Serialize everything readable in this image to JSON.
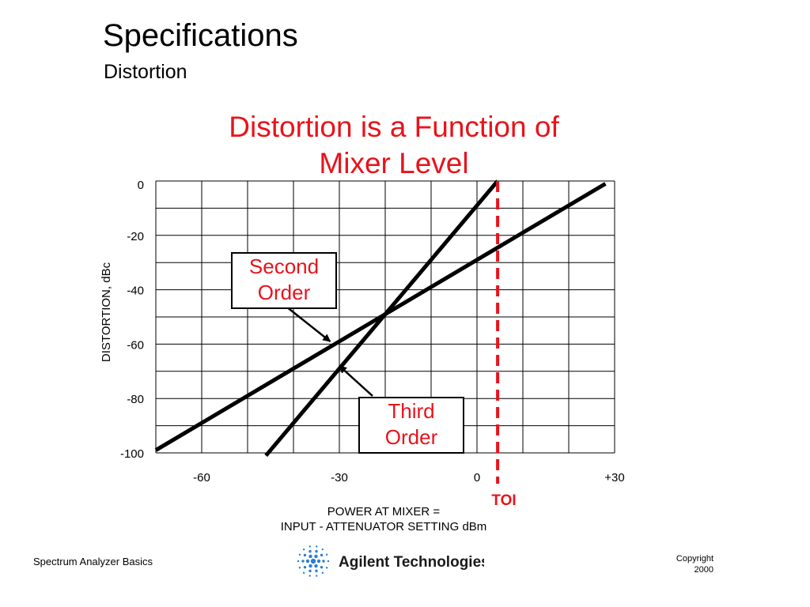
{
  "slide": {
    "title": "Specifications",
    "subtitle": "Distortion"
  },
  "chart_data": {
    "type": "line",
    "title": "Distortion is a Function of Mixer Level",
    "title_lines": [
      "Distortion is a Function of",
      "Mixer Level"
    ],
    "ylabel": "DISTORTION, dBc",
    "xlabel_lines": [
      "POWER AT MIXER =",
      "INPUT - ATTENUATOR SETTING dBm"
    ],
    "xlim": [
      -70,
      30
    ],
    "ylim": [
      -100,
      0
    ],
    "grid": true,
    "x_ticks": [
      {
        "value": -60,
        "label": "-60"
      },
      {
        "value": -30,
        "label": "-30"
      },
      {
        "value": 0,
        "label": "0"
      },
      {
        "value": 30,
        "label": "+30"
      }
    ],
    "y_ticks": [
      {
        "value": 0,
        "label": "0"
      },
      {
        "value": -20,
        "label": "-20"
      },
      {
        "value": -40,
        "label": "-40"
      },
      {
        "value": -60,
        "label": "-60"
      },
      {
        "value": -80,
        "label": "-80"
      },
      {
        "value": -100,
        "label": "-100"
      }
    ],
    "series": [
      {
        "name": "Second Order",
        "points": [
          [
            -70,
            -99
          ],
          [
            28,
            -1
          ]
        ],
        "color": "#000000"
      },
      {
        "name": "Third Order",
        "points": [
          [
            -46,
            -101
          ],
          [
            4.5,
            0
          ]
        ],
        "color": "#000000"
      }
    ],
    "annotations": [
      {
        "label": "Second Order",
        "lines": [
          "Second",
          "Order"
        ],
        "target": [
          -32,
          -59
        ]
      },
      {
        "label": "Third Order",
        "lines": [
          "Third",
          "Order"
        ],
        "target": [
          -30,
          -68
        ]
      }
    ],
    "reference_line": {
      "label": "TOI",
      "x": 4.5,
      "color": "#e8131b",
      "style": "dashed"
    }
  },
  "footer": {
    "left": "Spectrum Analyzer Basics",
    "copyright_lines": [
      "Copyright",
      "2000"
    ],
    "logo_text": "Agilent Technologies",
    "logo_icon": "agilent-spark-icon"
  }
}
